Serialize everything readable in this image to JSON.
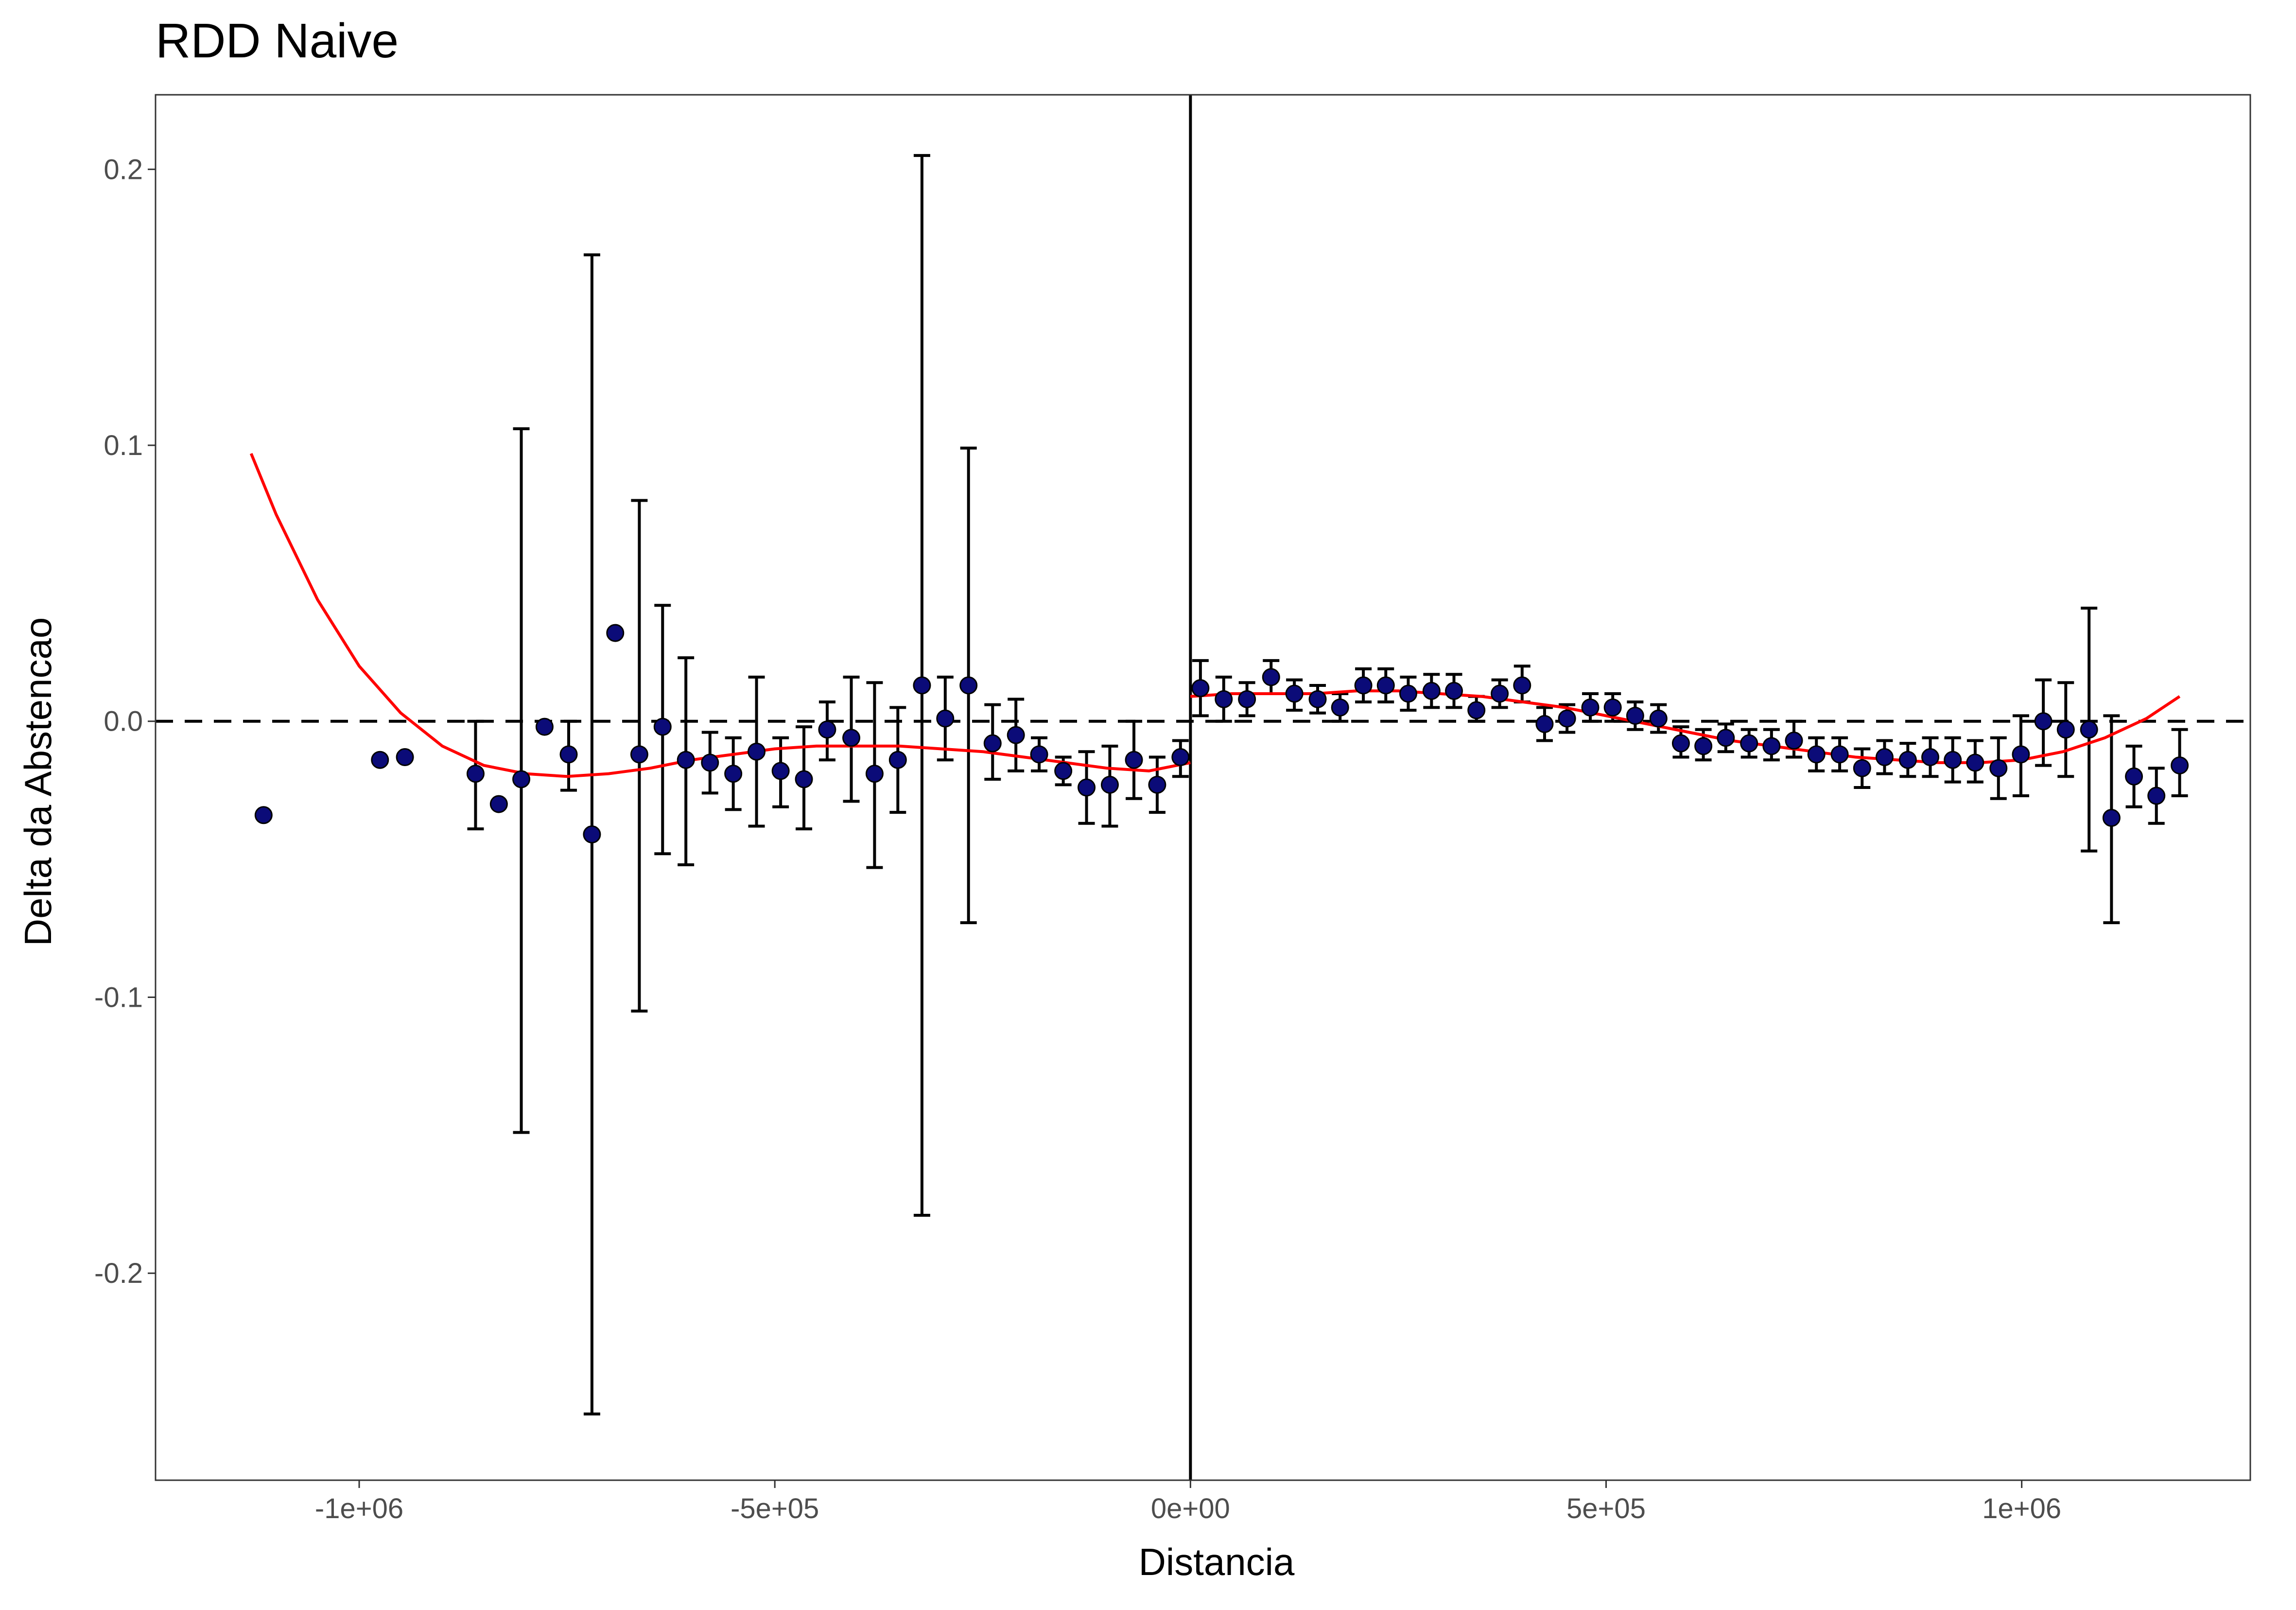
{
  "chart_data": {
    "type": "scatter",
    "title": "RDD Naive",
    "xlabel": "Distancia",
    "ylabel": "Delta da Abstencao",
    "xlim": [
      -1245000,
      1275000
    ],
    "ylim": [
      -0.275,
      0.227
    ],
    "x_ticks": [
      -1000000,
      -500000,
      0,
      500000,
      1000000
    ],
    "x_tick_labels": [
      "-1e+06",
      "-5e+05",
      "0e+00",
      "5e+05",
      "1e+06"
    ],
    "y_ticks": [
      0.2,
      0.1,
      0.0,
      -0.1,
      -0.2
    ],
    "y_tick_labels": [
      "0.2",
      "0.1",
      "0.0",
      "-0.1",
      "-0.2"
    ],
    "grid": false,
    "reference_lines": {
      "vertical_at_x": 0,
      "horizontal_dashed_at_y": 0
    },
    "colors": {
      "points": "#0b0b78",
      "error_bars": "#000000",
      "fit_curve": "#ff0000",
      "reference_lines": "#000000"
    },
    "series": [
      {
        "type": "points_with_error_bars",
        "points": [
          {
            "x": -1115000,
            "y": -0.034,
            "lo": -0.034,
            "hi": -0.034
          },
          {
            "x": -975000,
            "y": -0.014,
            "lo": -0.014,
            "hi": -0.014
          },
          {
            "x": -945000,
            "y": -0.013,
            "lo": -0.013,
            "hi": -0.013
          },
          {
            "x": -860000,
            "y": -0.019,
            "lo": -0.039,
            "hi": 0.0
          },
          {
            "x": -832000,
            "y": -0.03,
            "lo": -0.03,
            "hi": -0.03
          },
          {
            "x": -805000,
            "y": -0.021,
            "lo": -0.149,
            "hi": 0.106
          },
          {
            "x": -777000,
            "y": -0.002,
            "lo": -0.002,
            "hi": -0.002
          },
          {
            "x": -748000,
            "y": -0.012,
            "lo": -0.025,
            "hi": 0.0
          },
          {
            "x": -720000,
            "y": -0.041,
            "lo": -0.251,
            "hi": 0.169
          },
          {
            "x": -692000,
            "y": 0.032,
            "lo": 0.032,
            "hi": 0.032
          },
          {
            "x": -663000,
            "y": -0.012,
            "lo": -0.105,
            "hi": 0.08
          },
          {
            "x": -635000,
            "y": -0.002,
            "lo": -0.048,
            "hi": 0.042
          },
          {
            "x": -607000,
            "y": -0.014,
            "lo": -0.052,
            "hi": 0.023
          },
          {
            "x": -578000,
            "y": -0.015,
            "lo": -0.026,
            "hi": -0.004
          },
          {
            "x": -550000,
            "y": -0.019,
            "lo": -0.032,
            "hi": -0.006
          },
          {
            "x": -522000,
            "y": -0.011,
            "lo": -0.038,
            "hi": 0.016
          },
          {
            "x": -493000,
            "y": -0.018,
            "lo": -0.031,
            "hi": -0.006
          },
          {
            "x": -465000,
            "y": -0.021,
            "lo": -0.039,
            "hi": -0.002
          },
          {
            "x": -437000,
            "y": -0.003,
            "lo": -0.014,
            "hi": 0.007
          },
          {
            "x": -408000,
            "y": -0.006,
            "lo": -0.029,
            "hi": 0.016
          },
          {
            "x": -380000,
            "y": -0.019,
            "lo": -0.053,
            "hi": 0.014
          },
          {
            "x": -352000,
            "y": -0.014,
            "lo": -0.033,
            "hi": 0.005
          },
          {
            "x": -323000,
            "y": 0.013,
            "lo": -0.179,
            "hi": 0.205
          },
          {
            "x": -295000,
            "y": 0.001,
            "lo": -0.014,
            "hi": 0.016
          },
          {
            "x": -267000,
            "y": 0.013,
            "lo": -0.073,
            "hi": 0.099
          },
          {
            "x": -238000,
            "y": -0.008,
            "lo": -0.021,
            "hi": 0.006
          },
          {
            "x": -210000,
            "y": -0.005,
            "lo": -0.018,
            "hi": 0.008
          },
          {
            "x": -182000,
            "y": -0.012,
            "lo": -0.018,
            "hi": -0.006
          },
          {
            "x": -153000,
            "y": -0.018,
            "lo": -0.023,
            "hi": -0.013
          },
          {
            "x": -125000,
            "y": -0.024,
            "lo": -0.037,
            "hi": -0.011
          },
          {
            "x": -97000,
            "y": -0.023,
            "lo": -0.038,
            "hi": -0.009
          },
          {
            "x": -68000,
            "y": -0.014,
            "lo": -0.028,
            "hi": 0.0
          },
          {
            "x": -40000,
            "y": -0.023,
            "lo": -0.033,
            "hi": -0.013
          },
          {
            "x": -12000,
            "y": -0.013,
            "lo": -0.02,
            "hi": -0.007
          },
          {
            "x": 12000,
            "y": 0.012,
            "lo": 0.002,
            "hi": 0.022
          },
          {
            "x": 40000,
            "y": 0.008,
            "lo": 0.0,
            "hi": 0.016
          },
          {
            "x": 68000,
            "y": 0.008,
            "lo": 0.002,
            "hi": 0.014
          },
          {
            "x": 97000,
            "y": 0.016,
            "lo": 0.01,
            "hi": 0.022
          },
          {
            "x": 125000,
            "y": 0.01,
            "lo": 0.004,
            "hi": 0.015
          },
          {
            "x": 153000,
            "y": 0.008,
            "lo": 0.003,
            "hi": 0.013
          },
          {
            "x": 180000,
            "y": 0.005,
            "lo": 0.0,
            "hi": 0.01
          },
          {
            "x": 208000,
            "y": 0.013,
            "lo": 0.007,
            "hi": 0.019
          },
          {
            "x": 235000,
            "y": 0.013,
            "lo": 0.007,
            "hi": 0.019
          },
          {
            "x": 262000,
            "y": 0.01,
            "lo": 0.004,
            "hi": 0.016
          },
          {
            "x": 290000,
            "y": 0.011,
            "lo": 0.005,
            "hi": 0.017
          },
          {
            "x": 317000,
            "y": 0.011,
            "lo": 0.005,
            "hi": 0.017
          },
          {
            "x": 344000,
            "y": 0.004,
            "lo": 0.0,
            "hi": 0.009
          },
          {
            "x": 372000,
            "y": 0.01,
            "lo": 0.005,
            "hi": 0.015
          },
          {
            "x": 399000,
            "y": 0.013,
            "lo": 0.007,
            "hi": 0.02
          },
          {
            "x": 426000,
            "y": -0.001,
            "lo": -0.007,
            "hi": 0.005
          },
          {
            "x": 453000,
            "y": 0.001,
            "lo": -0.004,
            "hi": 0.006
          },
          {
            "x": 481000,
            "y": 0.005,
            "lo": 0.0,
            "hi": 0.01
          },
          {
            "x": 508000,
            "y": 0.005,
            "lo": 0.0,
            "hi": 0.01
          },
          {
            "x": 535000,
            "y": 0.002,
            "lo": -0.003,
            "hi": 0.007
          },
          {
            "x": 563000,
            "y": 0.001,
            "lo": -0.004,
            "hi": 0.006
          },
          {
            "x": 590000,
            "y": -0.008,
            "lo": -0.013,
            "hi": -0.002
          },
          {
            "x": 617000,
            "y": -0.009,
            "lo": -0.014,
            "hi": -0.003
          },
          {
            "x": 644000,
            "y": -0.006,
            "lo": -0.011,
            "hi": -0.001
          },
          {
            "x": 672000,
            "y": -0.008,
            "lo": -0.013,
            "hi": -0.003
          },
          {
            "x": 699000,
            "y": -0.009,
            "lo": -0.014,
            "hi": -0.003
          },
          {
            "x": 726000,
            "y": -0.007,
            "lo": -0.013,
            "hi": 0.0
          },
          {
            "x": 753000,
            "y": -0.012,
            "lo": -0.018,
            "hi": -0.006
          },
          {
            "x": 781000,
            "y": -0.012,
            "lo": -0.018,
            "hi": -0.006
          },
          {
            "x": 808000,
            "y": -0.017,
            "lo": -0.024,
            "hi": -0.01
          },
          {
            "x": 835000,
            "y": -0.013,
            "lo": -0.019,
            "hi": -0.007
          },
          {
            "x": 863000,
            "y": -0.014,
            "lo": -0.02,
            "hi": -0.008
          },
          {
            "x": 890000,
            "y": -0.013,
            "lo": -0.02,
            "hi": -0.006
          },
          {
            "x": 917000,
            "y": -0.014,
            "lo": -0.022,
            "hi": -0.006
          },
          {
            "x": 944000,
            "y": -0.015,
            "lo": -0.022,
            "hi": -0.007
          },
          {
            "x": 972000,
            "y": -0.017,
            "lo": -0.028,
            "hi": -0.006
          },
          {
            "x": 999000,
            "y": -0.012,
            "lo": -0.027,
            "hi": 0.002
          },
          {
            "x": 1026000,
            "y": 0.0,
            "lo": -0.016,
            "hi": 0.015
          },
          {
            "x": 1053000,
            "y": -0.003,
            "lo": -0.02,
            "hi": 0.014
          },
          {
            "x": 1081000,
            "y": -0.003,
            "lo": -0.047,
            "hi": 0.041
          },
          {
            "x": 1108000,
            "y": -0.035,
            "lo": -0.073,
            "hi": 0.002
          },
          {
            "x": 1135000,
            "y": -0.02,
            "lo": -0.031,
            "hi": -0.009
          },
          {
            "x": 1162000,
            "y": -0.027,
            "lo": -0.037,
            "hi": -0.017
          },
          {
            "x": 1190000,
            "y": -0.016,
            "lo": -0.027,
            "hi": -0.003
          }
        ]
      },
      {
        "type": "fit_curve",
        "segments": [
          {
            "side": "left",
            "points": [
              [
                -1130000,
                0.097
              ],
              [
                -1100000,
                0.075
              ],
              [
                -1050000,
                0.044
              ],
              [
                -1000000,
                0.02
              ],
              [
                -950000,
                0.003
              ],
              [
                -900000,
                -0.009
              ],
              [
                -850000,
                -0.016
              ],
              [
                -800000,
                -0.019
              ],
              [
                -750000,
                -0.02
              ],
              [
                -700000,
                -0.019
              ],
              [
                -650000,
                -0.017
              ],
              [
                -600000,
                -0.014
              ],
              [
                -550000,
                -0.012
              ],
              [
                -500000,
                -0.01
              ],
              [
                -450000,
                -0.009
              ],
              [
                -400000,
                -0.009
              ],
              [
                -350000,
                -0.009
              ],
              [
                -300000,
                -0.01
              ],
              [
                -250000,
                -0.011
              ],
              [
                -200000,
                -0.013
              ],
              [
                -150000,
                -0.015
              ],
              [
                -100000,
                -0.017
              ],
              [
                -50000,
                -0.018
              ],
              [
                0,
                -0.015
              ]
            ]
          },
          {
            "side": "right",
            "points": [
              [
                0,
                0.009
              ],
              [
                50000,
                0.01
              ],
              [
                100000,
                0.01
              ],
              [
                150000,
                0.01
              ],
              [
                200000,
                0.011
              ],
              [
                250000,
                0.011
              ],
              [
                300000,
                0.01
              ],
              [
                350000,
                0.009
              ],
              [
                400000,
                0.007
              ],
              [
                450000,
                0.005
              ],
              [
                500000,
                0.002
              ],
              [
                550000,
                -0.001
              ],
              [
                600000,
                -0.004
              ],
              [
                650000,
                -0.007
              ],
              [
                700000,
                -0.009
              ],
              [
                750000,
                -0.011
              ],
              [
                800000,
                -0.013
              ],
              [
                850000,
                -0.014
              ],
              [
                900000,
                -0.015
              ],
              [
                950000,
                -0.015
              ],
              [
                1000000,
                -0.014
              ],
              [
                1050000,
                -0.011
              ],
              [
                1100000,
                -0.006
              ],
              [
                1150000,
                0.001
              ],
              [
                1190000,
                0.009
              ]
            ]
          }
        ]
      }
    ]
  }
}
